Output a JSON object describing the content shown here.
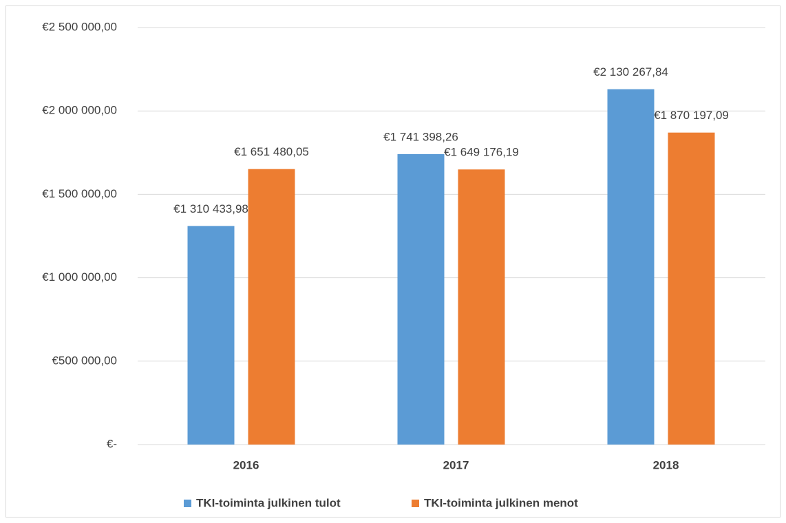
{
  "chart_data": {
    "type": "bar",
    "categories": [
      "2016",
      "2017",
      "2018"
    ],
    "series": [
      {
        "name": "TKI-toiminta julkinen tulot",
        "color": "#5b9bd5",
        "values": [
          1310433.98,
          1741398.26,
          2130267.84
        ],
        "value_labels": [
          "€1 310 433,98",
          "€1 741 398,26",
          "€2 130 267,84"
        ]
      },
      {
        "name": "TKI-toiminta julkinen menot",
        "color": "#ed7d31",
        "values": [
          1651480.05,
          1649176.19,
          1870197.09
        ],
        "value_labels": [
          "€1 651 480,05",
          "€1 649 176,19",
          "€1 870 197,09"
        ]
      }
    ],
    "ylim": [
      0,
      2500000
    ],
    "yticks": [
      {
        "value": 0,
        "label": "€-"
      },
      {
        "value": 500000,
        "label": "€500 000,00"
      },
      {
        "value": 1000000,
        "label": "€1 000 000,00"
      },
      {
        "value": 1500000,
        "label": "€1 500 000,00"
      },
      {
        "value": 2000000,
        "label": "€2 000 000,00"
      },
      {
        "value": 2500000,
        "label": "€2 500 000,00"
      }
    ],
    "grid": true,
    "legend": "bottom"
  }
}
